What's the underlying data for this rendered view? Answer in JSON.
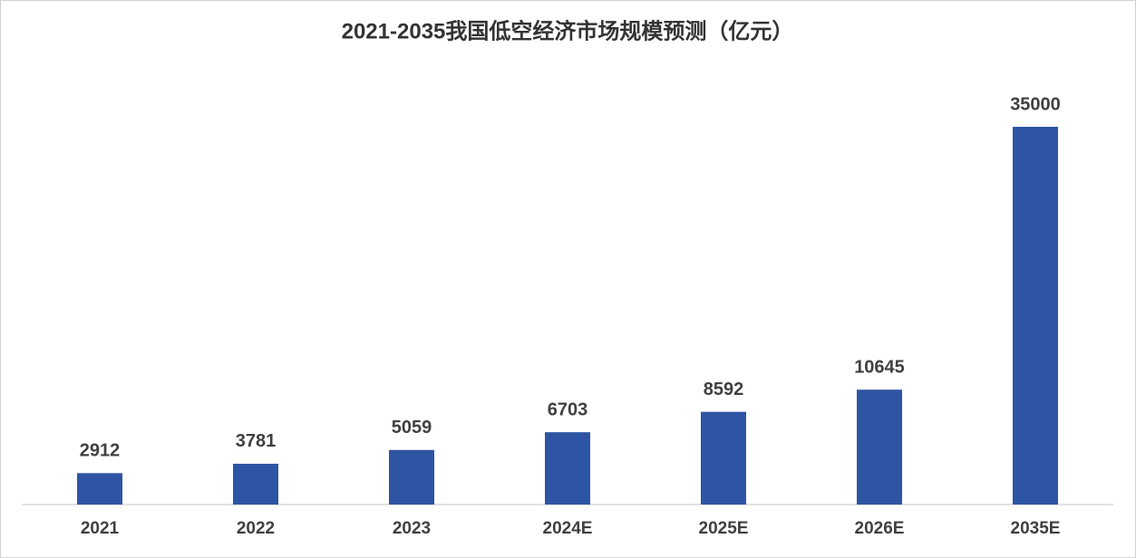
{
  "chart_data": {
    "type": "bar",
    "title": "2021-2035我国低空经济市场规模预测（亿元）",
    "categories": [
      "2021",
      "2022",
      "2023",
      "2024E",
      "2025E",
      "2026E",
      "2035E"
    ],
    "values": [
      2912,
      3781,
      5059,
      6703,
      8592,
      10645,
      35000
    ],
    "color": "#2e54a4"
  }
}
